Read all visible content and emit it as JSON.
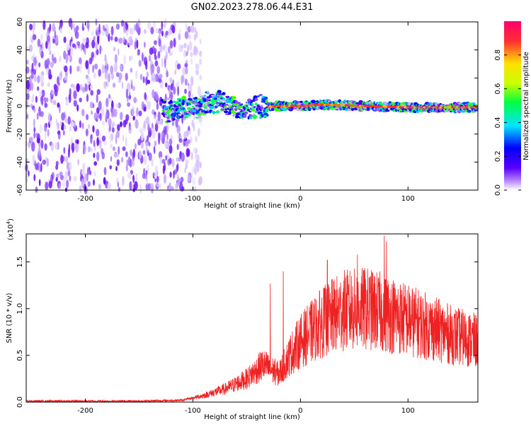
{
  "title": "GN02.2023.278.06.44.E31",
  "chart_data": [
    {
      "type": "heatmap",
      "xlabel": "Height of straight line (km)",
      "ylabel": "Frequency (Hz)",
      "xlim": [
        -255,
        165
      ],
      "ylim": [
        -60,
        60
      ],
      "x_ticks": [
        -200,
        -100,
        0,
        100
      ],
      "y_ticks": [
        -60,
        -40,
        -20,
        0,
        20,
        40,
        60
      ],
      "noise_region_x": [
        -255,
        -103
      ],
      "signal_band_center": [
        {
          "x": -125,
          "y": -3
        },
        {
          "x": -110,
          "y": -2
        },
        {
          "x": -90,
          "y": 1
        },
        {
          "x": -75,
          "y": 3
        },
        {
          "x": -60,
          "y": -1
        },
        {
          "x": -50,
          "y": -4
        },
        {
          "x": -42,
          "y": 0
        },
        {
          "x": -35,
          "y": -1
        },
        {
          "x": -25,
          "y": 0
        },
        {
          "x": 0,
          "y": 0
        },
        {
          "x": 20,
          "y": 1
        },
        {
          "x": 60,
          "y": 0
        },
        {
          "x": 100,
          "y": -1
        },
        {
          "x": 130,
          "y": -1
        },
        {
          "x": 165,
          "y": -1
        }
      ],
      "colorbar": {
        "label": "Normalized spectral amplitude",
        "range": [
          0,
          1
        ],
        "ticks": [
          "0.0",
          "0.2",
          "0.4",
          "0.6",
          "0.8"
        ],
        "tick_values": [
          0,
          0.2,
          0.4,
          0.6,
          0.8
        ],
        "colors": [
          "#ffffff",
          "#b07cff",
          "#5a00ff",
          "#0000ff",
          "#00e5ff",
          "#00ff40",
          "#c8ff00",
          "#ffe000",
          "#ff3030",
          "#ff006e"
        ]
      }
    },
    {
      "type": "line",
      "xlabel": "Height of straight line (km)",
      "ylabel": "SNR (10 * v/v)",
      "y_multiplier": "(x10",
      "y_multiplier_exp": "4",
      "y_multiplier_close": ")",
      "xlim": [
        -255,
        165
      ],
      "ylim": [
        0,
        1.8
      ],
      "x_ticks": [
        -200,
        -100,
        0,
        100
      ],
      "y_ticks": [
        "0.0",
        "0.5",
        "1.0",
        "1.5"
      ],
      "y_tick_values": [
        0,
        0.5,
        1.0,
        1.5
      ],
      "color": "#ee2222",
      "envelope": [
        {
          "x": -255,
          "y": 0.01
        },
        {
          "x": -150,
          "y": 0.01
        },
        {
          "x": -110,
          "y": 0.02
        },
        {
          "x": -90,
          "y": 0.07
        },
        {
          "x": -70,
          "y": 0.14
        },
        {
          "x": -50,
          "y": 0.25
        },
        {
          "x": -35,
          "y": 0.4
        },
        {
          "x": -20,
          "y": 0.3
        },
        {
          "x": -10,
          "y": 0.5
        },
        {
          "x": 0,
          "y": 0.65
        },
        {
          "x": 20,
          "y": 0.85
        },
        {
          "x": 40,
          "y": 0.98
        },
        {
          "x": 60,
          "y": 1.0
        },
        {
          "x": 80,
          "y": 0.95
        },
        {
          "x": 100,
          "y": 0.88
        },
        {
          "x": 120,
          "y": 0.8
        },
        {
          "x": 140,
          "y": 0.72
        },
        {
          "x": 165,
          "y": 0.65
        }
      ],
      "peaks": [
        {
          "x": -28,
          "y": 1.27
        },
        {
          "x": -16,
          "y": 1.4
        },
        {
          "x": 25,
          "y": 1.52
        },
        {
          "x": 53,
          "y": 1.58
        },
        {
          "x": 78,
          "y": 1.78
        },
        {
          "x": 80,
          "y": 1.72
        }
      ]
    }
  ]
}
